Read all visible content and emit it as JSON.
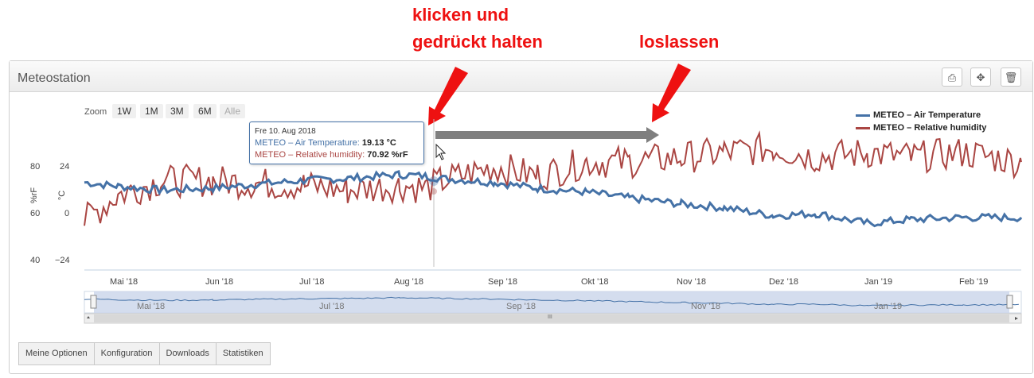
{
  "annotations": {
    "press": "klicken und",
    "hold": "gedrückt halten",
    "release": "loslassen"
  },
  "panel": {
    "title": "Meteostation"
  },
  "header_buttons": {
    "print": "⎙",
    "move": "✥",
    "delete": "🗑"
  },
  "zoom": {
    "label": "Zoom",
    "buttons": [
      "1W",
      "1M",
      "3M",
      "6M",
      "Alle"
    ]
  },
  "tooltip": {
    "date": "Fre 10. Aug 2018",
    "temp_label": "METEO – Air Temperature:",
    "temp_value": "19.13 °C",
    "hum_label": "METEO – Relative humidity:",
    "hum_value": "70.92 %rF"
  },
  "axis": {
    "humidity_unit": "%rF",
    "temp_unit": "°C",
    "humidity_ticks": [
      "80",
      "60",
      "40"
    ],
    "temp_ticks": [
      "24",
      "0",
      "−24"
    ]
  },
  "months": [
    "Mai '18",
    "Jun '18",
    "Jul '18",
    "Aug '18",
    "Sep '18",
    "Okt '18",
    "Nov '18",
    "Dez '18",
    "Jan '19",
    "Feb '19"
  ],
  "navigator_months": [
    "Mai '18",
    "Jul '18",
    "Sep '18",
    "Nov '18",
    "Jan '19"
  ],
  "scroll_grip": "III",
  "legend": [
    {
      "name": "METEO – Air Temperature",
      "color": "#4572a7"
    },
    {
      "name": "METEO – Relative humidity",
      "color": "#aa4643"
    }
  ],
  "tabs": [
    "Meine Optionen",
    "Konfiguration",
    "Downloads",
    "Statistiken"
  ],
  "chart_data": {
    "type": "line",
    "x": [
      "2018-04-20",
      "2018-05-01",
      "2018-05-15",
      "2018-06-01",
      "2018-06-15",
      "2018-07-01",
      "2018-07-15",
      "2018-08-01",
      "2018-08-10",
      "2018-08-15",
      "2018-09-01",
      "2018-09-15",
      "2018-10-01",
      "2018-10-15",
      "2018-11-01",
      "2018-11-15",
      "2018-12-01",
      "2018-12-15",
      "2019-01-01",
      "2019-01-15",
      "2019-02-01",
      "2019-02-20"
    ],
    "series": [
      {
        "name": "METEO – Air Temperature",
        "axis": "°C",
        "values": [
          16,
          14,
          12,
          13,
          15,
          17,
          18,
          20,
          19.13,
          18,
          16,
          13,
          11,
          8,
          5,
          3,
          -1,
          0,
          -5,
          -3,
          -2,
          -2
        ]
      },
      {
        "name": "METEO – Relative humidity",
        "axis": "%rF",
        "values": [
          57,
          68,
          74,
          74,
          73,
          72,
          70,
          72,
          70.92,
          74,
          80,
          76,
          82,
          82,
          84,
          86,
          88,
          84,
          86,
          84,
          86,
          82
        ]
      }
    ],
    "temp_ylim": [
      -24,
      24
    ],
    "humidity_ylim": [
      40,
      80
    ],
    "tooltip_x": "2018-08-10",
    "legend_position": "top-right"
  }
}
